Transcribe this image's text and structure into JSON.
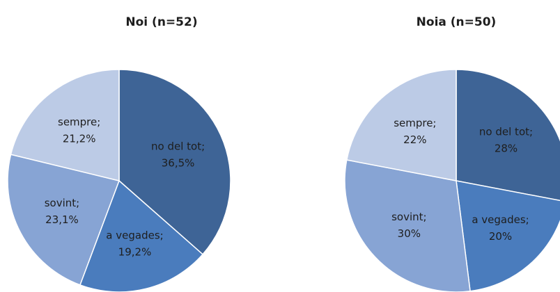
{
  "chart_data": [
    {
      "type": "pie",
      "title": "Noi (n=52)",
      "categories": [
        "no del tot;",
        "a vegades;",
        "sovint;",
        "sempre;"
      ],
      "values": [
        36.5,
        19.2,
        23.1,
        21.2
      ],
      "value_labels": [
        "36,5%",
        "19,2%",
        "23,1%",
        "21,2%"
      ],
      "colors": [
        "#3e6496",
        "#4a7cbd",
        "#87a4d4",
        "#bccbe6"
      ]
    },
    {
      "type": "pie",
      "title": "Noia (n=50)",
      "categories": [
        "no del tot;",
        "a vegades;",
        "sovint;",
        "sempre;"
      ],
      "values": [
        28,
        20,
        30,
        22
      ],
      "value_labels": [
        "28%",
        "20%",
        "30%",
        "22%"
      ],
      "colors": [
        "#3e6496",
        "#4a7cbd",
        "#87a4d4",
        "#bccbe6"
      ]
    }
  ]
}
